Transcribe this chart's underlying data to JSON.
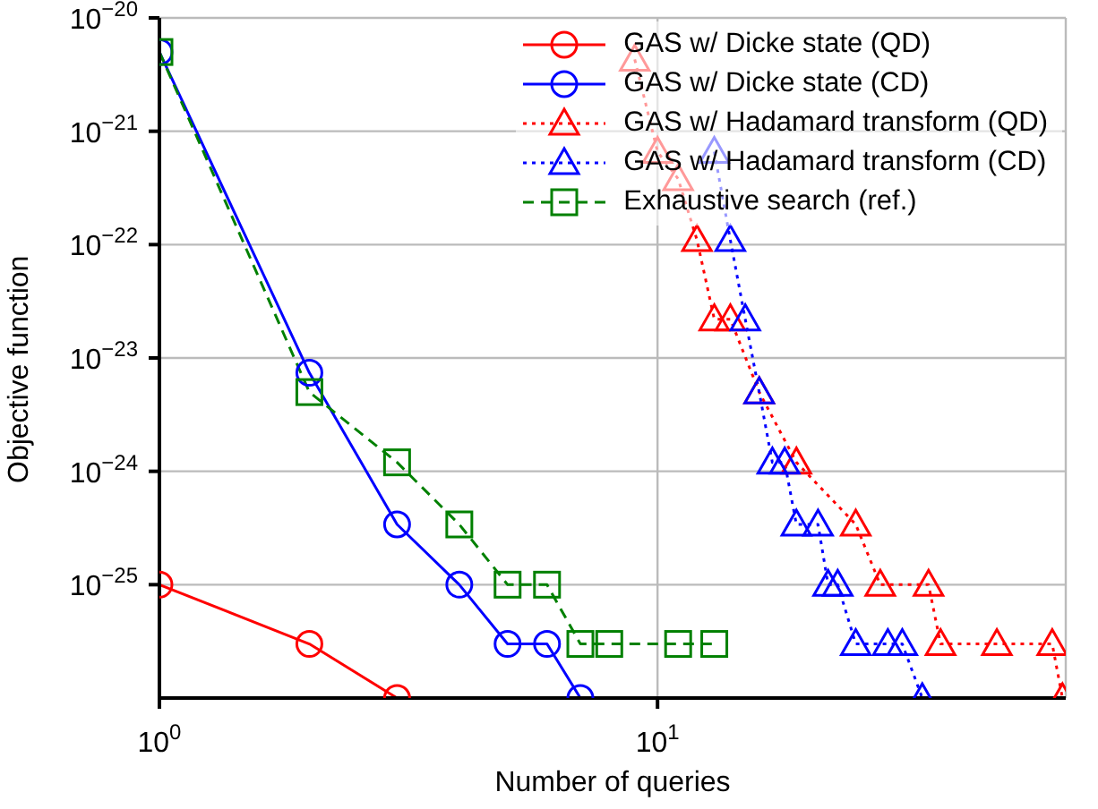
{
  "chart_data": {
    "type": "line",
    "xlabel": "Number of queries",
    "ylabel": "Objective function",
    "log": "xy",
    "grid": true,
    "legend": "top right",
    "xlim": [
      1,
      66
    ],
    "xticks": [
      {
        "value": 1,
        "label": "10$^{0}$"
      },
      {
        "value": 10,
        "label": "10$^{1}$"
      }
    ],
    "ylim": [
      1e-26,
      1e-20
    ],
    "yticks": [
      {
        "value": 1e-25,
        "label": "10$^{−25}$"
      },
      {
        "value": 1e-24,
        "label": "10$^{−24}$"
      },
      {
        "value": 1e-23,
        "label": "10$^{−23}$"
      },
      {
        "value": 1e-22,
        "label": "10$^{−22}$"
      },
      {
        "value": 1e-21,
        "label": "10$^{−21}$"
      },
      {
        "value": 1e-20,
        "label": "10$^{−20}$"
      }
    ],
    "series": [
      {
        "name": "GAS w/ Dicke state (QD)",
        "color": "#ff0000",
        "marker": "circle",
        "line_style": "solid",
        "x": [
          1,
          2,
          3
        ],
        "values": [
          1e-25,
          3e-26,
          1e-26
        ]
      },
      {
        "name": "GAS w/ Dicke state (CD)",
        "color": "#0000ff",
        "marker": "circle",
        "line_style": "solid",
        "x": [
          1,
          2,
          3,
          4,
          5,
          6,
          7
        ],
        "values": [
          5e-21,
          7.4e-24,
          3.4e-25,
          1e-25,
          3e-26,
          3e-26,
          1e-26
        ]
      },
      {
        "name": "GAS w/ Hadamard transform (QD)",
        "color": "#ff0000",
        "marker": "triangle",
        "line_style": "dotted",
        "x": [
          9,
          10,
          11,
          12,
          13,
          14,
          16,
          19,
          25,
          28,
          35,
          37,
          48,
          62,
          65
        ],
        "values": [
          4.3e-21,
          6.6e-22,
          3.8e-22,
          1.1e-22,
          2.2e-23,
          2.2e-23,
          5e-24,
          1.2e-24,
          3.4e-25,
          1e-25,
          1e-25,
          3e-26,
          3e-26,
          3e-26,
          1e-26
        ]
      },
      {
        "name": "GAS w/ Hadamard transform (CD)",
        "color": "#0000ff",
        "marker": "triangle",
        "line_style": "dotted",
        "x": [
          13,
          14,
          15,
          16,
          17,
          18,
          19,
          21,
          22,
          23,
          25,
          29,
          31,
          34
        ],
        "values": [
          6.6e-22,
          1.1e-22,
          2.2e-23,
          5e-24,
          1.2e-24,
          1.2e-24,
          3.4e-25,
          3.4e-25,
          1e-25,
          1e-25,
          3e-26,
          3e-26,
          3e-26,
          1e-26
        ]
      },
      {
        "name": "Exhaustive search (ref.)",
        "color": "#008000",
        "marker": "square",
        "line_style": "dashed",
        "x": [
          1,
          2,
          3,
          4,
          5,
          6,
          7,
          8,
          11,
          13
        ],
        "values": [
          5e-21,
          5e-24,
          1.2e-24,
          3.4e-25,
          1e-25,
          1e-25,
          3e-26,
          3e-26,
          3e-26,
          3e-26
        ]
      }
    ]
  }
}
